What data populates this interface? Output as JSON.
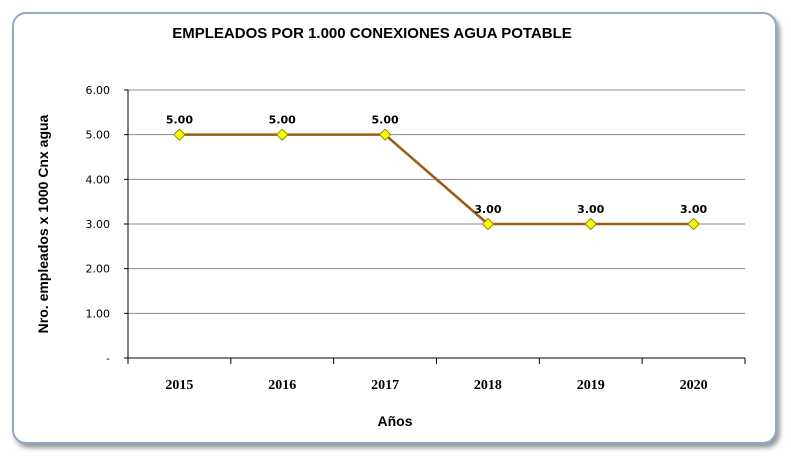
{
  "chart_data": {
    "type": "line",
    "title": "EMPLEADOS POR 1.000 CONEXIONES AGUA POTABLE",
    "xlabel": "Años",
    "ylabel": "Nro. empleados x 1000 Cnx agua",
    "categories": [
      "2015",
      "2016",
      "2017",
      "2018",
      "2019",
      "2020"
    ],
    "series": [
      {
        "values": [
          5.0,
          5.0,
          5.0,
          3.0,
          3.0,
          3.0
        ],
        "labels": [
          "5.00",
          "5.00",
          "5.00",
          "3.00",
          "3.00",
          "3.00"
        ]
      }
    ],
    "yticks": [
      {
        "value": 0,
        "label": "-"
      },
      {
        "value": 1,
        "label": "1.00"
      },
      {
        "value": 2,
        "label": "2.00"
      },
      {
        "value": 3,
        "label": "3.00"
      },
      {
        "value": 4,
        "label": "4.00"
      },
      {
        "value": 5,
        "label": "5.00"
      },
      {
        "value": 6,
        "label": "6.00"
      }
    ],
    "ylim": [
      0,
      6
    ],
    "grid": true,
    "legend": "none",
    "colors": {
      "line": "#9c5a12",
      "marker_fill": "#ffff00",
      "marker_stroke": "#8c8c00",
      "grid": "#8c8c8c",
      "frame_border": "#8fa7c9"
    }
  }
}
